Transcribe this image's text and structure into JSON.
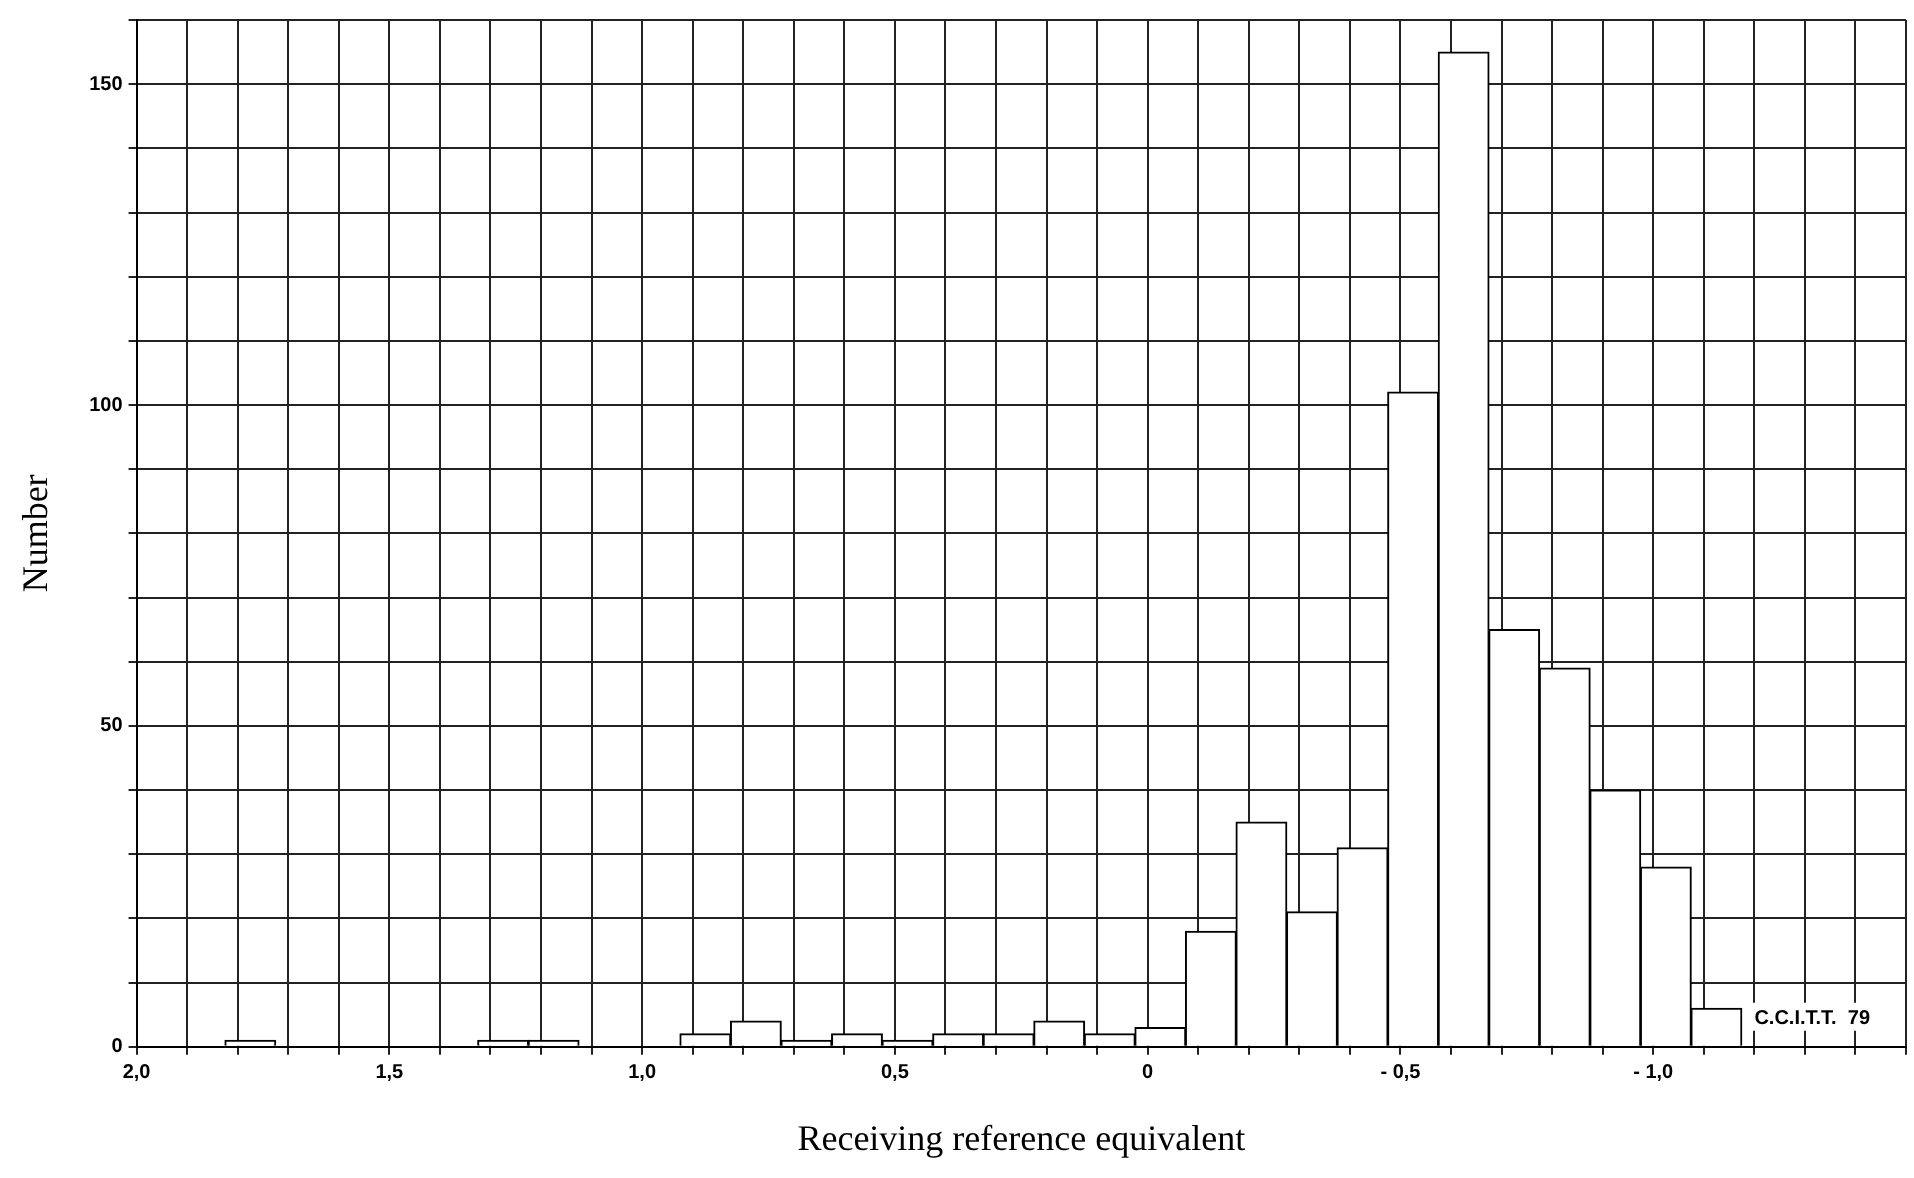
{
  "chart_data": {
    "type": "histogram",
    "xlabel": "Receiving reference equivalent",
    "ylabel": "Number",
    "bins": [
      1.825,
      1.725,
      1.625,
      1.525,
      1.425,
      1.325,
      1.225,
      1.125,
      1.025,
      0.925,
      0.825,
      0.725,
      0.625,
      0.525,
      0.425,
      0.325,
      0.225,
      0.125,
      0.025,
      -0.075,
      -0.175,
      -0.275,
      -0.375,
      -0.475,
      -0.575,
      -0.675,
      -0.775,
      -0.875,
      -0.975,
      -1.075,
      -1.175
    ],
    "values": [
      1,
      0,
      0,
      0,
      0,
      1,
      1,
      0,
      0,
      2,
      4,
      1,
      2,
      1,
      2,
      2,
      4,
      2,
      3,
      18,
      35,
      21,
      31,
      102,
      155,
      65,
      59,
      40,
      28,
      6
    ],
    "color": "#ffffff",
    "xlim": [
      2.0,
      -1.5
    ],
    "xticks": [
      {
        "value": 2.0,
        "label": "2,0"
      },
      {
        "value": 1.9,
        "label": null
      },
      {
        "value": 1.8,
        "label": null
      },
      {
        "value": 1.7,
        "label": null
      },
      {
        "value": 1.6,
        "label": null
      },
      {
        "value": 1.5,
        "label": "1,5"
      },
      {
        "value": 1.4,
        "label": null
      },
      {
        "value": 1.3,
        "label": null
      },
      {
        "value": 1.2,
        "label": null
      },
      {
        "value": 1.1,
        "label": null
      },
      {
        "value": 1.0,
        "label": "1,0"
      },
      {
        "value": 0.9,
        "label": null
      },
      {
        "value": 0.8,
        "label": null
      },
      {
        "value": 0.7,
        "label": null
      },
      {
        "value": 0.6,
        "label": null
      },
      {
        "value": 0.5,
        "label": "0,5"
      },
      {
        "value": 0.4,
        "label": null
      },
      {
        "value": 0.3,
        "label": null
      },
      {
        "value": 0.2,
        "label": null
      },
      {
        "value": 0.1,
        "label": null
      },
      0,
      {
        "value": -0.1,
        "label": null
      },
      {
        "value": -0.2,
        "label": null
      },
      {
        "value": -0.3,
        "label": null
      },
      {
        "value": -0.4,
        "label": null
      },
      {
        "value": -0.5,
        "label": "- 0,5"
      },
      {
        "value": -0.6,
        "label": null
      },
      {
        "value": -0.7,
        "label": null
      },
      {
        "value": -0.8,
        "label": null
      },
      {
        "value": -0.9,
        "label": null
      },
      {
        "value": -1.0,
        "label": "- 1,0"
      },
      {
        "value": -1.1,
        "label": null
      },
      {
        "value": -1.2,
        "label": null
      },
      {
        "value": -1.3,
        "label": null
      },
      {
        "value": -1.4,
        "label": null
      },
      {
        "value": -1.5,
        "label": null
      }
    ],
    "ylim": [
      0,
      160
    ],
    "yticks": [
      0,
      {
        "value": 10,
        "label": null
      },
      {
        "value": 20,
        "label": null
      },
      {
        "value": 30,
        "label": null
      },
      {
        "value": 40,
        "label": null
      },
      50,
      {
        "value": 60,
        "label": null
      },
      {
        "value": 70,
        "label": null
      },
      {
        "value": 80,
        "label": null
      },
      {
        "value": 90,
        "label": null
      },
      100,
      {
        "value": 110,
        "label": null
      },
      {
        "value": 120,
        "label": null
      },
      {
        "value": 130,
        "label": null
      },
      {
        "value": 140,
        "label": null
      },
      150,
      {
        "value": 160,
        "label": null
      }
    ],
    "grid": true,
    "annotations": [
      "C.C.I.T.T.  79"
    ]
  }
}
